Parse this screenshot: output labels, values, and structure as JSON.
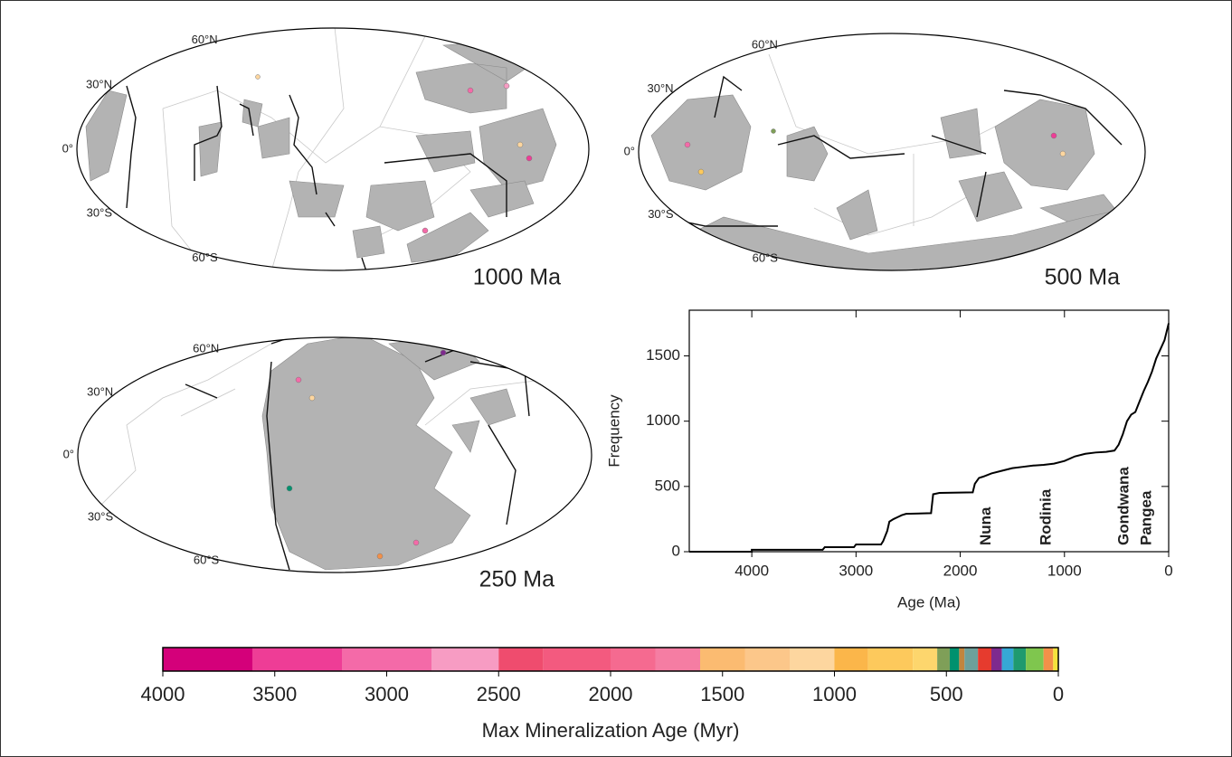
{
  "maps": [
    {
      "label": "1000 Ma",
      "lat_labels": [
        "60°N",
        "30°N",
        "0°",
        "30°S",
        "60°S"
      ]
    },
    {
      "label": "500 Ma",
      "lat_labels": [
        "60°N",
        "30°N",
        "0°",
        "30°S",
        "60°S"
      ]
    },
    {
      "label": "250 Ma",
      "lat_labels": [
        "60°N",
        "30°N",
        "0°",
        "30°S",
        "60°S"
      ]
    }
  ],
  "chart_data": [
    {
      "type": "line",
      "xlabel": "Age (Ma)",
      "ylabel": "Frequency",
      "x": [
        4600,
        4000,
        4000,
        3320,
        3300,
        3020,
        3000,
        2760,
        2740,
        2700,
        2680,
        2640,
        2600,
        2560,
        2520,
        2280,
        2260,
        2200,
        1880,
        1860,
        1820,
        1780,
        1700,
        1600,
        1500,
        1400,
        1300,
        1200,
        1100,
        1000,
        900,
        800,
        700,
        600,
        520,
        480,
        440,
        400,
        360,
        320,
        280,
        240,
        200,
        160,
        120,
        80,
        40,
        0
      ],
      "values": [
        0,
        0,
        15,
        15,
        35,
        35,
        55,
        55,
        80,
        160,
        230,
        250,
        265,
        280,
        290,
        295,
        440,
        450,
        455,
        520,
        565,
        575,
        600,
        620,
        640,
        650,
        660,
        665,
        675,
        695,
        730,
        750,
        760,
        765,
        775,
        820,
        900,
        1000,
        1050,
        1070,
        1150,
        1230,
        1300,
        1380,
        1480,
        1550,
        1620,
        1750
      ],
      "color": "#000000",
      "xlim": [
        4600,
        0
      ],
      "ylim": [
        0,
        1850
      ],
      "xticks": [
        4000,
        3000,
        2000,
        1000,
        0
      ],
      "yticks": [
        0,
        500,
        1000,
        1500
      ],
      "annotations": [
        {
          "text": "Nuna",
          "x": 1750
        },
        {
          "text": "Rodinia",
          "x": 1170
        },
        {
          "text": "Gondwana",
          "x": 425
        },
        {
          "text": "Pangea",
          "x": 210
        }
      ]
    },
    {
      "type": "colorbar",
      "xlabel": "Max Mineralization Age (Myr)",
      "bins": [
        4000,
        3600,
        3200,
        2800,
        2500,
        2300,
        2000,
        1800,
        1600,
        1400,
        1200,
        1000,
        850,
        650,
        541,
        485,
        443,
        419,
        359,
        299,
        252,
        201,
        145,
        66,
        23,
        0
      ],
      "colors": [
        "#d4007a",
        "#ee3d96",
        "#f46aa8",
        "#f79cc3",
        "#ef4c6e",
        "#f35a7f",
        "#f56a90",
        "#f57da3",
        "#fbbb71",
        "#fcc78a",
        "#fdd69f",
        "#fbb64a",
        "#fdc95c",
        "#fdd66d",
        "#7f9f58",
        "#00916e",
        "#c1853e",
        "#6da09b",
        "#e63b2e",
        "#7e2a8e",
        "#36a8d5",
        "#1f9a6e",
        "#7fc64e",
        "#f39049",
        "#f5e23b"
      ],
      "xlim": [
        4000,
        0
      ],
      "xticks": [
        4000,
        3500,
        3000,
        2500,
        2000,
        1500,
        1000,
        500,
        0
      ]
    }
  ]
}
